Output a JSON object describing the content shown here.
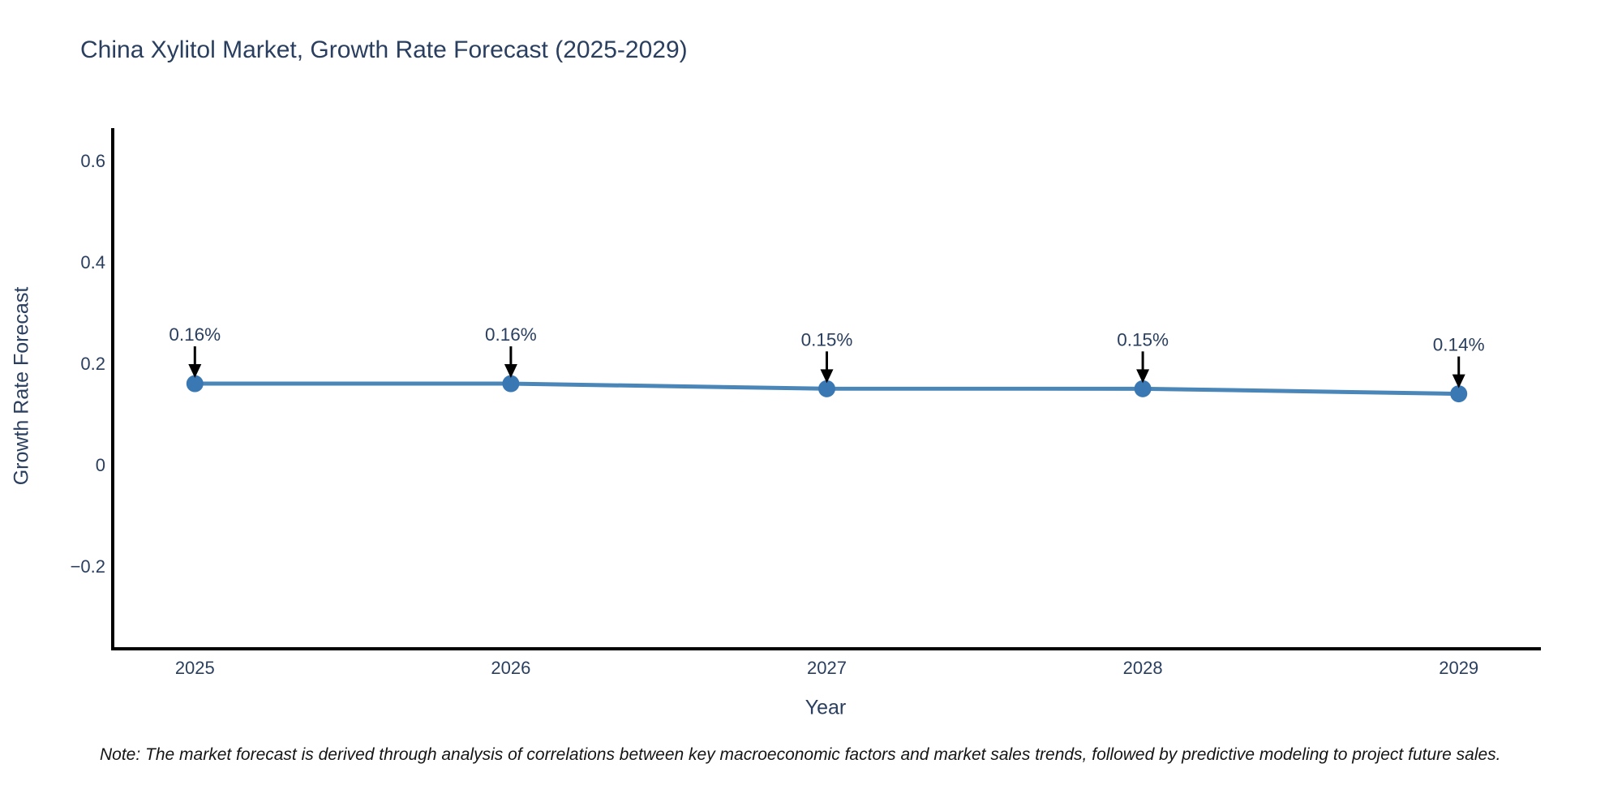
{
  "page": {
    "title": "China Xylitol Market, Growth Rate Forecast (2025-2029)",
    "note": "Note: The market forecast is derived through analysis of correlations between key macroeconomic factors and market sales trends, followed by predictive modeling to project future sales."
  },
  "colors": {
    "background": "#ffffff",
    "title_text": "#2a3f5f",
    "axis_line": "#000000",
    "tick_label": "#2a3f5f",
    "line": "#4a86b8",
    "marker": "#3a78b4",
    "annotation_text": "#2a3f5f",
    "arrow": "#000000",
    "note_text": "#151515"
  },
  "chart_data": {
    "type": "line",
    "title": "China Xylitol Market, Growth Rate Forecast (2025-2029)",
    "xlabel": "Year",
    "ylabel": "Growth Rate Forecast",
    "x": [
      2025,
      2026,
      2027,
      2028,
      2029
    ],
    "values": [
      0.16,
      0.16,
      0.15,
      0.15,
      0.14
    ],
    "point_labels": [
      "0.16%",
      "0.16%",
      "0.15%",
      "0.15%",
      "0.14%"
    ],
    "x_tick_labels": [
      "2025",
      "2026",
      "2027",
      "2028",
      "2029"
    ],
    "y_ticks": [
      0.6,
      0.4,
      0.2,
      0,
      -0.2
    ],
    "y_tick_labels": [
      "0.6",
      "0.4",
      "0.2",
      "0",
      "−0.2"
    ],
    "xlim": [
      2024.74,
      2029.26
    ],
    "ylim": [
      -0.363,
      0.664
    ],
    "grid": false,
    "legend_position": "none",
    "marker_style": "circle",
    "annotation_style": "value label with downward arrow at each point"
  }
}
